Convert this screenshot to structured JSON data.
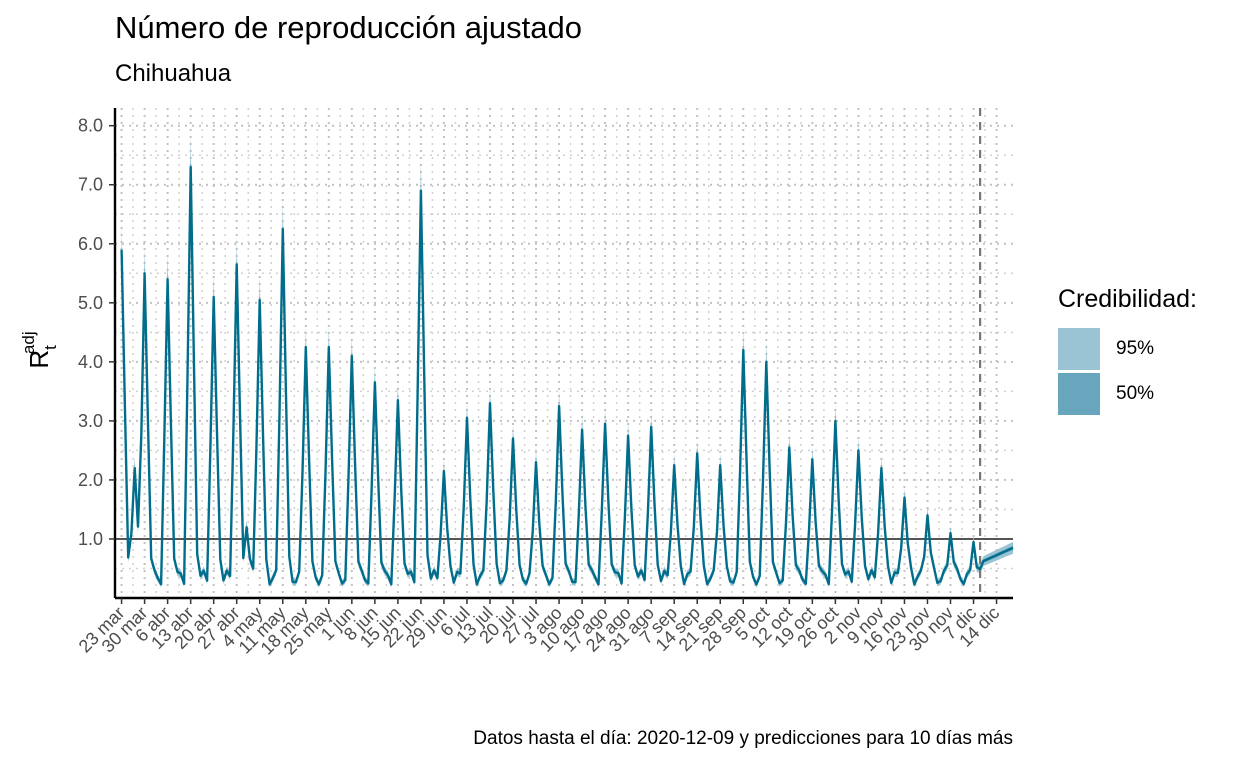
{
  "chart_data": {
    "type": "line",
    "title": "Número de reproducción ajustado",
    "subtitle": "Chihuahua",
    "ylabel": {
      "main": "R",
      "sub": "t",
      "sup": "adj"
    },
    "xlabel": "",
    "caption": "Datos hasta el día: 2020-12-09 y predicciones para 10 días más",
    "x_tick_labels": [
      "23 mar",
      "30 mar",
      "6 abr",
      "13 abr",
      "20 abr",
      "27 abr",
      "4 may",
      "11 may",
      "18 may",
      "25 may",
      "1 jun",
      "8 jun",
      "15 jun",
      "22 jun",
      "29 jun",
      "6 jul",
      "13 jul",
      "20 jul",
      "27 jul",
      "3 ago",
      "10 ago",
      "17 ago",
      "24 ago",
      "31 ago",
      "7 sep",
      "14 sep",
      "21 sep",
      "28 sep",
      "5 oct",
      "12 oct",
      "19 oct",
      "26 oct",
      "2 nov",
      "9 nov",
      "16 nov",
      "23 nov",
      "30 nov",
      "7 dic",
      "14 dic"
    ],
    "y_tick_labels": [
      "1.0",
      "2.0",
      "3.0",
      "4.0",
      "5.0",
      "6.0",
      "7.0",
      "8.0"
    ],
    "y_ticks": [
      1,
      2,
      3,
      4,
      5,
      6,
      7,
      8
    ],
    "ylim": [
      0,
      8.3
    ],
    "x_range": [
      "2020-03-21",
      "2020-12-19"
    ],
    "reference_line_y": 1.0,
    "data_end_date": "2020-12-09",
    "grid": true,
    "legend": {
      "title": "Credibilidad:",
      "placement": "right",
      "items": [
        {
          "label": "95%",
          "color": "#9ac4d3"
        },
        {
          "label": "50%",
          "color": "#67a6bd"
        }
      ]
    },
    "colors": {
      "line": "#006d8c",
      "band95": "#9ac4d3",
      "band50": "#67a6bd"
    },
    "series": [
      {
        "peaks": [
          [
            "2020-03-23",
            5.9
          ],
          [
            "2020-03-27",
            2.2
          ],
          [
            "2020-03-30",
            5.5
          ],
          [
            "2020-04-06",
            5.4
          ],
          [
            "2020-04-13",
            7.3
          ],
          [
            "2020-04-20",
            5.1
          ],
          [
            "2020-04-27",
            5.65
          ],
          [
            "2020-04-30",
            1.2
          ],
          [
            "2020-05-04",
            5.05
          ],
          [
            "2020-05-11",
            6.25
          ],
          [
            "2020-05-18",
            4.25
          ],
          [
            "2020-05-25",
            4.25
          ],
          [
            "2020-06-01",
            4.1
          ],
          [
            "2020-06-08",
            3.65
          ],
          [
            "2020-06-15",
            3.35
          ],
          [
            "2020-06-22",
            6.9
          ],
          [
            "2020-06-29",
            2.15
          ],
          [
            "2020-07-06",
            3.05
          ],
          [
            "2020-07-13",
            3.3
          ],
          [
            "2020-07-20",
            2.7
          ],
          [
            "2020-07-27",
            2.3
          ],
          [
            "2020-08-03",
            3.25
          ],
          [
            "2020-08-10",
            2.85
          ],
          [
            "2020-08-17",
            2.95
          ],
          [
            "2020-08-24",
            2.75
          ],
          [
            "2020-08-31",
            2.9
          ],
          [
            "2020-09-07",
            2.25
          ],
          [
            "2020-09-14",
            2.45
          ],
          [
            "2020-09-21",
            2.25
          ],
          [
            "2020-09-28",
            4.2
          ],
          [
            "2020-10-05",
            4.0
          ],
          [
            "2020-10-12",
            2.55
          ],
          [
            "2020-10-19",
            2.35
          ],
          [
            "2020-10-26",
            3.0
          ],
          [
            "2020-11-02",
            2.5
          ],
          [
            "2020-11-09",
            2.2
          ],
          [
            "2020-11-16",
            1.7
          ],
          [
            "2020-11-23",
            1.4
          ],
          [
            "2020-11-30",
            1.1
          ],
          [
            "2020-12-07",
            0.95
          ]
        ]
      }
    ]
  }
}
